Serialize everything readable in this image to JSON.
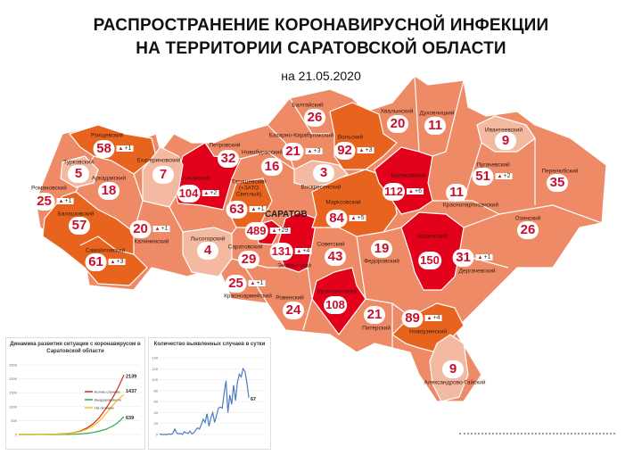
{
  "header": {
    "title_line1": "РАСПРОСТРАНЕНИЕ КОРОНАВИРУСНОЙ ИНФЕКЦИИ",
    "title_line2": "НА ТЕРРИТОРИИ САРАТОВСКОЙ ОБЛАСТИ",
    "date": "на 21.05.2020"
  },
  "colors": {
    "red": "#e3001b",
    "dark_orange": "#e8641e",
    "medium": "#ee8a66",
    "light": "#f4b9a1",
    "number": "#c8102e"
  },
  "city_label": "САРАТОВ",
  "regions": [
    {
      "name": "Ртищевский",
      "cases": "58",
      "increase": "+1"
    },
    {
      "name": "Турковский",
      "cases": "5"
    },
    {
      "name": "Романовский",
      "cases": "25",
      "increase": "+1"
    },
    {
      "name": "Аркадакский",
      "cases": "18"
    },
    {
      "name": "Балашовский",
      "cases": "57"
    },
    {
      "name": "Самойловский",
      "cases": "61",
      "increase": "+3"
    },
    {
      "name": "Екатериновский",
      "cases": "7"
    },
    {
      "name": "Аткарский",
      "cases": "104",
      "increase": "+2"
    },
    {
      "name": "Петровский",
      "cases": "32"
    },
    {
      "name": "Новобурасский",
      "cases": "16"
    },
    {
      "name": "Татищевский (+ЗАТО Светлый)",
      "cases": "63",
      "increase": "+1"
    },
    {
      "name": "Калининский",
      "cases": "20",
      "increase": "+1"
    },
    {
      "name": "Лысогорский",
      "cases": "4"
    },
    {
      "name": "Саратовский",
      "cases": "29"
    },
    {
      "name": "Саратов",
      "cases": "489",
      "increase": "+29"
    },
    {
      "name": "Энгельсский",
      "cases": "131",
      "increase": "+4"
    },
    {
      "name": "Красноармейский",
      "cases": "25",
      "increase": "+1"
    },
    {
      "name": "Ровенский",
      "cases": "24"
    },
    {
      "name": "Балтайский",
      "cases": "26"
    },
    {
      "name": "Базарно-Карабулакский",
      "cases": "21",
      "increase": "+3"
    },
    {
      "name": "Воскресенский",
      "cases": "3"
    },
    {
      "name": "Вольский",
      "cases": "92",
      "increase": "+3"
    },
    {
      "name": "Хвалынский",
      "cases": "20"
    },
    {
      "name": "Духовницкий",
      "cases": "11"
    },
    {
      "name": "Ивантеевский",
      "cases": "9"
    },
    {
      "name": "Балаковский",
      "cases": "112",
      "increase": "+6"
    },
    {
      "name": "Пугачевский",
      "cases": "51",
      "increase": "+2"
    },
    {
      "name": "Перелюбский",
      "cases": "35"
    },
    {
      "name": "Краснопартизанский",
      "cases": "11"
    },
    {
      "name": "Марксовский",
      "cases": "84",
      "increase": "+5"
    },
    {
      "name": "Озинский",
      "cases": "26"
    },
    {
      "name": "Советский",
      "cases": "43"
    },
    {
      "name": "Федоровский",
      "cases": "19"
    },
    {
      "name": "Ершовский",
      "cases": "150"
    },
    {
      "name": "Дергачевский",
      "cases": "31",
      "increase": "+1"
    },
    {
      "name": "Краснокутский",
      "cases": "108"
    },
    {
      "name": "Питерский",
      "cases": "21"
    },
    {
      "name": "Новоузенский",
      "cases": "89",
      "increase": "+4"
    },
    {
      "name": "Александрово-Гайский",
      "cases": "9"
    }
  ],
  "chart_data": [
    {
      "type": "line",
      "title": "Динамика развития ситуации с коронавирусом в Саратовской области",
      "ylim": [
        0,
        2500
      ],
      "yticks": [
        "0",
        "500",
        "1000",
        "1500",
        "2000",
        "2500"
      ],
      "grid": true,
      "legend": "right",
      "series": [
        {
          "name": "Кол-во случаев",
          "color": "#d9261c",
          "end_label": "2139",
          "values": [
            0,
            0,
            0,
            2,
            5,
            10,
            15,
            25,
            40,
            70,
            130,
            230,
            380,
            600,
            900,
            1250,
            1650,
            2139
          ]
        },
        {
          "name": "Выздоровевших",
          "color": "#2eaa4a",
          "end_label": "639",
          "values": [
            0,
            0,
            0,
            0,
            0,
            0,
            1,
            3,
            5,
            10,
            20,
            40,
            70,
            120,
            180,
            280,
            420,
            639
          ]
        },
        {
          "name": "На лечении",
          "color": "#f2c21b",
          "end_label": "1437",
          "values": [
            0,
            0,
            0,
            2,
            5,
            10,
            14,
            22,
            35,
            60,
            110,
            190,
            310,
            480,
            720,
            1000,
            1250,
            1437
          ]
        }
      ]
    },
    {
      "type": "line",
      "title": "Количество выявленных случаев в сутки",
      "ylim": [
        0,
        140
      ],
      "yticks": [
        "0",
        "20",
        "40",
        "60",
        "80",
        "100",
        "120",
        "140"
      ],
      "grid": true,
      "series": [
        {
          "color": "#4a7cc4",
          "end_label": "67",
          "values": [
            1,
            0,
            0,
            0,
            0,
            1,
            0,
            2,
            10,
            3,
            1,
            2,
            0,
            5,
            3,
            2,
            6,
            1,
            3,
            8,
            12,
            10,
            18,
            28,
            22,
            38,
            15,
            30,
            40,
            22,
            35,
            48,
            50,
            48,
            75,
            98,
            40,
            72,
            55,
            90,
            62,
            95,
            110,
            105,
            120,
            115,
            95,
            67
          ]
        }
      ]
    }
  ]
}
